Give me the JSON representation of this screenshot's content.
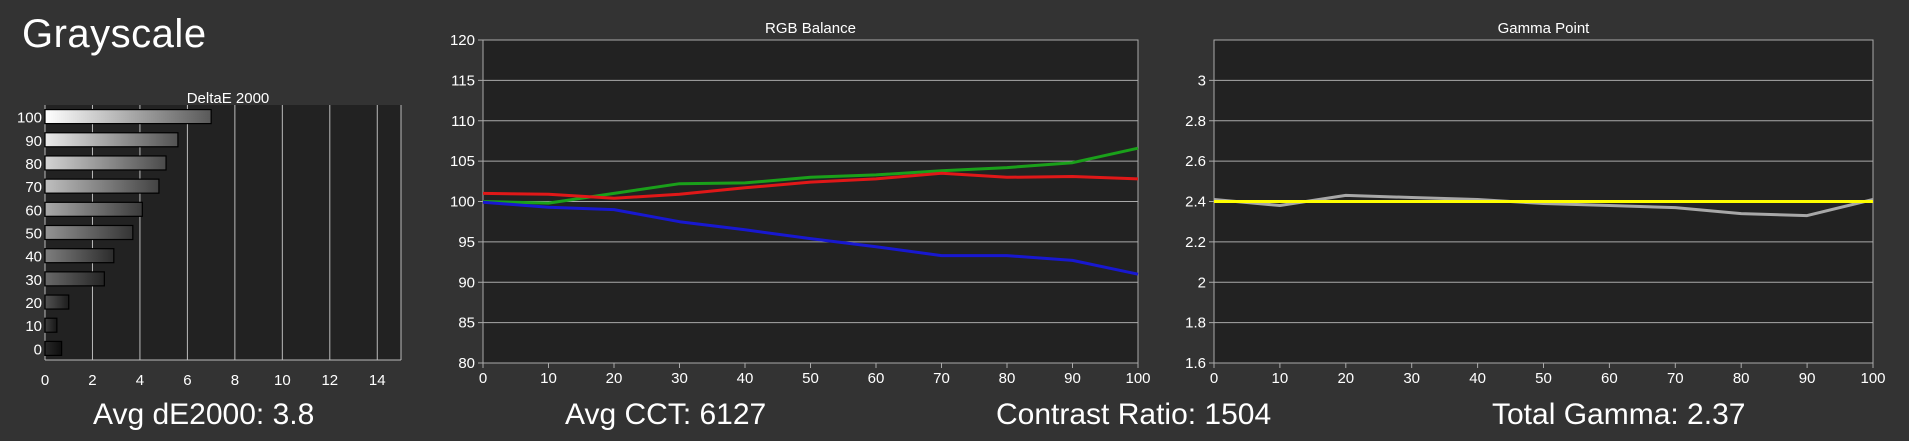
{
  "page": {
    "title": "Grayscale",
    "background": "#333333",
    "stats": {
      "avg_de": "Avg dE2000: 3.8",
      "avg_cct": "Avg CCT: 6127",
      "contrast": "Contrast Ratio: 1504",
      "total_gamma": "Total Gamma: 2.37"
    }
  },
  "chart_data": [
    {
      "id": "deltae",
      "type": "bar",
      "orientation": "horizontal",
      "title": "DeltaE 2000",
      "categories": [
        "100",
        "90",
        "80",
        "70",
        "60",
        "50",
        "40",
        "30",
        "20",
        "10",
        "0"
      ],
      "values": [
        7.0,
        5.6,
        5.1,
        4.8,
        4.1,
        3.7,
        2.9,
        2.5,
        1.0,
        0.5,
        0.7
      ],
      "xlim": [
        0,
        15
      ],
      "xticks": [
        0,
        2,
        4,
        6,
        8,
        10,
        12,
        14
      ],
      "grid": true
    },
    {
      "id": "rgb",
      "type": "line",
      "title": "RGB Balance",
      "x": [
        0,
        10,
        20,
        30,
        40,
        50,
        60,
        70,
        80,
        90,
        100
      ],
      "ylim": [
        80,
        120
      ],
      "xlim": [
        0,
        100
      ],
      "yticks": [
        80,
        85,
        90,
        95,
        100,
        105,
        110,
        115,
        120
      ],
      "xticks": [
        0,
        10,
        20,
        30,
        40,
        50,
        60,
        70,
        80,
        90,
        100
      ],
      "series": [
        {
          "color": "#1aa01a",
          "values": [
            100.0,
            99.8,
            101.0,
            102.2,
            102.3,
            103.0,
            103.3,
            103.8,
            104.2,
            104.8,
            106.6
          ]
        },
        {
          "color": "#e01818",
          "values": [
            101.0,
            100.9,
            100.4,
            100.9,
            101.7,
            102.4,
            102.8,
            103.5,
            103.0,
            103.1,
            102.8
          ]
        },
        {
          "color": "#1818d0",
          "values": [
            99.9,
            99.3,
            99.0,
            97.5,
            96.5,
            95.4,
            94.4,
            93.3,
            93.3,
            92.7,
            91.0
          ]
        }
      ],
      "grid": true
    },
    {
      "id": "gamma",
      "type": "line",
      "title": "Gamma Point",
      "x": [
        0,
        10,
        20,
        30,
        40,
        50,
        60,
        70,
        80,
        90,
        100
      ],
      "ylim": [
        1.6,
        3.2
      ],
      "xlim": [
        0,
        100
      ],
      "yticks": [
        1.6,
        1.8,
        2,
        2.2,
        2.4,
        2.6,
        2.8,
        3
      ],
      "xticks": [
        0,
        10,
        20,
        30,
        40,
        50,
        60,
        70,
        80,
        90,
        100
      ],
      "series": [
        {
          "color": "#a8a8a8",
          "values": [
            2.41,
            2.38,
            2.43,
            2.42,
            2.41,
            2.39,
            2.38,
            2.37,
            2.34,
            2.33,
            2.41
          ]
        },
        {
          "color": "#ffff00",
          "values": [
            2.4,
            2.4,
            2.4,
            2.4,
            2.4,
            2.4,
            2.4,
            2.4,
            2.4,
            2.4,
            2.4
          ]
        }
      ],
      "grid": true
    }
  ]
}
